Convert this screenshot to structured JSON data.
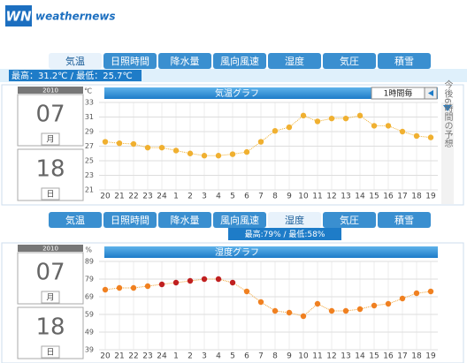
{
  "header": {
    "logo": "WN",
    "brand": "weathernews"
  },
  "panels": [
    {
      "tabs": [
        "気温",
        "日照時間",
        "降水量",
        "風向風速",
        "湿度",
        "気圧",
        "積雪"
      ],
      "summary": "最高：31.2℃ / 最低：25.7℃",
      "year": "2010",
      "month": "07",
      "month_unit": "月",
      "day": "18",
      "day_unit": "日",
      "graph_title": "気温グラフ",
      "interval": "1時間毎",
      "side_note": "今後6時間の予想"
    },
    {
      "tabs": [
        "気温",
        "日照時間",
        "降水量",
        "風向風速",
        "湿度",
        "気圧",
        "積雪"
      ],
      "summary": "最高:79% / 最低:58%",
      "year": "2010",
      "month": "07",
      "month_unit": "月",
      "day": "18",
      "day_unit": "日",
      "graph_title": "湿度グラフ"
    }
  ],
  "chart_data": [
    {
      "type": "line",
      "y_unit": "℃",
      "categories": [
        "20",
        "21",
        "22",
        "23",
        "24",
        "1",
        "2",
        "3",
        "4",
        "5",
        "6",
        "7",
        "8",
        "9",
        "10",
        "11",
        "12",
        "13",
        "14",
        "15",
        "16",
        "17",
        "18",
        "19"
      ],
      "values": [
        27.6,
        27.4,
        27.3,
        26.8,
        26.8,
        26.4,
        26.0,
        25.7,
        25.7,
        25.9,
        26.2,
        27.6,
        29.1,
        29.6,
        31.2,
        30.4,
        30.8,
        30.8,
        31.2,
        29.8,
        29.8,
        29.0,
        28.4,
        28.2
      ],
      "color": "#f0b030",
      "ylim": [
        21,
        33
      ],
      "yticks": [
        21,
        23,
        25,
        27,
        29,
        31,
        33
      ],
      "grid": true
    },
    {
      "type": "line",
      "y_unit": "%",
      "categories": [
        "20",
        "21",
        "22",
        "23",
        "24",
        "1",
        "2",
        "3",
        "4",
        "5",
        "6",
        "7",
        "8",
        "9",
        "10",
        "11",
        "12",
        "13",
        "14",
        "15",
        "16",
        "17",
        "18",
        "19"
      ],
      "values": [
        73,
        74,
        74,
        75,
        76,
        77,
        78,
        79,
        79,
        77,
        72,
        66,
        61,
        60,
        58,
        65,
        61,
        61,
        62,
        64,
        65,
        68,
        71,
        72
      ],
      "colors": [
        "#f08020",
        "#f08020",
        "#f08020",
        "#f08020",
        "#c02020",
        "#c02020",
        "#c02020",
        "#c02020",
        "#c02020",
        "#c02020",
        "#f08020",
        "#f08020",
        "#f08020",
        "#f08020",
        "#f08020",
        "#f08020",
        "#f08020",
        "#f08020",
        "#f08020",
        "#f08020",
        "#f08020",
        "#f08020",
        "#f08020",
        "#f08020"
      ],
      "ylim": [
        39,
        89
      ],
      "yticks": [
        39,
        49,
        59,
        69,
        79,
        89
      ],
      "grid": true
    }
  ]
}
